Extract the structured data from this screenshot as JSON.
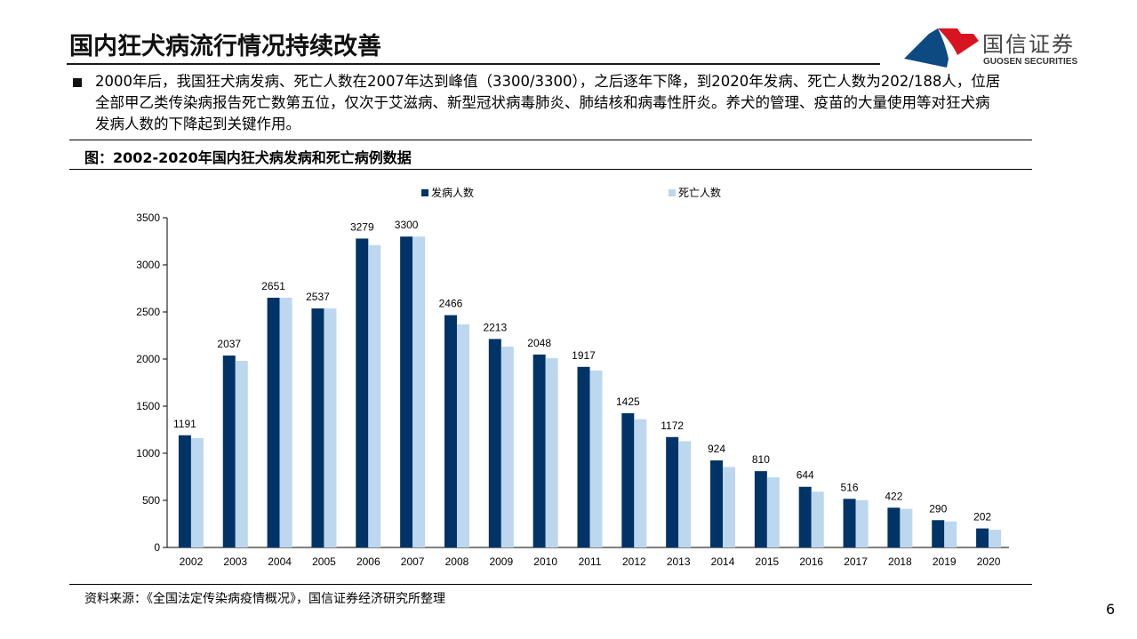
{
  "header": {
    "title": "国内狂犬病流行情况持续改善",
    "logo_cn": "国信证券",
    "logo_en": "GUOSEN SECURITIES"
  },
  "paragraph": "2000年后，我国狂犬病发病、死亡人数在2007年达到峰值（3300/3300），之后逐年下降，到2020年发病、死亡人数为202/188人，位居全部甲乙类传染病报告死亡数第五位，仅次于艾滋病、新型冠状病毒肺炎、肺结核和病毒性肝炎。养犬的管理、疫苗的大量使用等对狂犬病发病人数的下降起到关键作用。",
  "figure_title": "图：2002-2020年国内狂犬病发病和死亡病例数据",
  "source": "资料来源：《全国法定传染病疫情概况》，国信证券经济研究所整理",
  "page_number": "6",
  "colors": {
    "incidence": "#003366",
    "deaths": "#BDD7EE",
    "logo_red": "#D7141F",
    "logo_blue": "#0E4A82"
  },
  "chart_data": {
    "type": "bar",
    "categories": [
      "2002",
      "2003",
      "2004",
      "2005",
      "2006",
      "2007",
      "2008",
      "2009",
      "2010",
      "2011",
      "2012",
      "2013",
      "2014",
      "2015",
      "2016",
      "2017",
      "2018",
      "2019",
      "2020"
    ],
    "series": [
      {
        "name": "发病人数",
        "values": [
          1191,
          2037,
          2651,
          2537,
          3279,
          3300,
          2466,
          2213,
          2048,
          1917,
          1425,
          1172,
          924,
          810,
          644,
          516,
          422,
          290,
          202
        ],
        "data_labels": true
      },
      {
        "name": "死亡人数",
        "values": [
          1160,
          1981,
          2651,
          2537,
          3210,
          3300,
          2368,
          2132,
          2009,
          1879,
          1361,
          1128,
          854,
          744,
          592,
          502,
          410,
          276,
          188
        ],
        "data_labels": false
      }
    ],
    "ylim": [
      0,
      3500
    ],
    "yticks": [
      0,
      500,
      1000,
      1500,
      2000,
      2500,
      3000,
      3500
    ],
    "grid": false,
    "legend": "top"
  }
}
